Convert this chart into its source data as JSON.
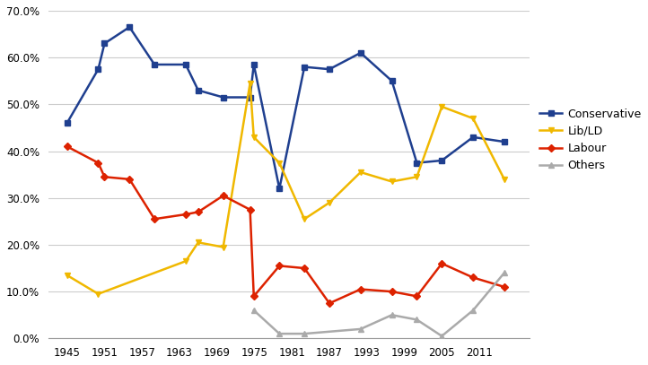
{
  "conservative_years": [
    1945,
    1950,
    1951,
    1955,
    1959,
    1964,
    1966,
    1970,
    1974.3,
    1974.9,
    1979,
    1983,
    1987,
    1992,
    1997,
    2001,
    2005,
    2010,
    2015
  ],
  "conservative_vals": [
    0.46,
    0.575,
    0.63,
    0.665,
    0.585,
    0.585,
    0.53,
    0.515,
    0.515,
    0.585,
    0.32,
    0.58,
    0.575,
    0.61,
    0.55,
    0.375,
    0.38,
    0.43,
    0.42
  ],
  "lib_years": [
    1945,
    1950,
    1964,
    1966,
    1970,
    1974.3,
    1974.9,
    1979,
    1983,
    1987,
    1992,
    1997,
    2001,
    2005,
    2010,
    2015
  ],
  "lib_vals": [
    0.135,
    0.095,
    0.165,
    0.205,
    0.195,
    0.545,
    0.43,
    0.375,
    0.255,
    0.29,
    0.355,
    0.335,
    0.345,
    0.495,
    0.47,
    0.34
  ],
  "labour_years": [
    1945,
    1950,
    1951,
    1955,
    1959,
    1964,
    1966,
    1970,
    1974.3,
    1974.9,
    1979,
    1983,
    1987,
    1992,
    1997,
    2001,
    2005,
    2010,
    2015
  ],
  "labour_vals": [
    0.41,
    0.375,
    0.345,
    0.34,
    0.255,
    0.265,
    0.27,
    0.305,
    0.275,
    0.09,
    0.155,
    0.15,
    0.075,
    0.105,
    0.1,
    0.09,
    0.16,
    0.13,
    0.11
  ],
  "others_years": [
    1974.9,
    1979,
    1983,
    1992,
    1997,
    2001,
    2005,
    2010,
    2015
  ],
  "others_vals": [
    0.06,
    0.01,
    0.01,
    0.02,
    0.05,
    0.04,
    0.005,
    0.06,
    0.14
  ],
  "conservative_color": "#1f3f8f",
  "lib_ld_color": "#f0b800",
  "labour_color": "#dd2200",
  "others_color": "#aaaaaa",
  "xlim_left": 1942,
  "xlim_right": 2019,
  "ylim": [
    0.0,
    0.7
  ],
  "yticks": [
    0.0,
    0.1,
    0.2,
    0.3,
    0.4,
    0.5,
    0.6,
    0.7
  ],
  "xtick_positions": [
    1945,
    1951,
    1957,
    1963,
    1969,
    1975,
    1981,
    1987,
    1993,
    1999,
    2005,
    2011
  ]
}
